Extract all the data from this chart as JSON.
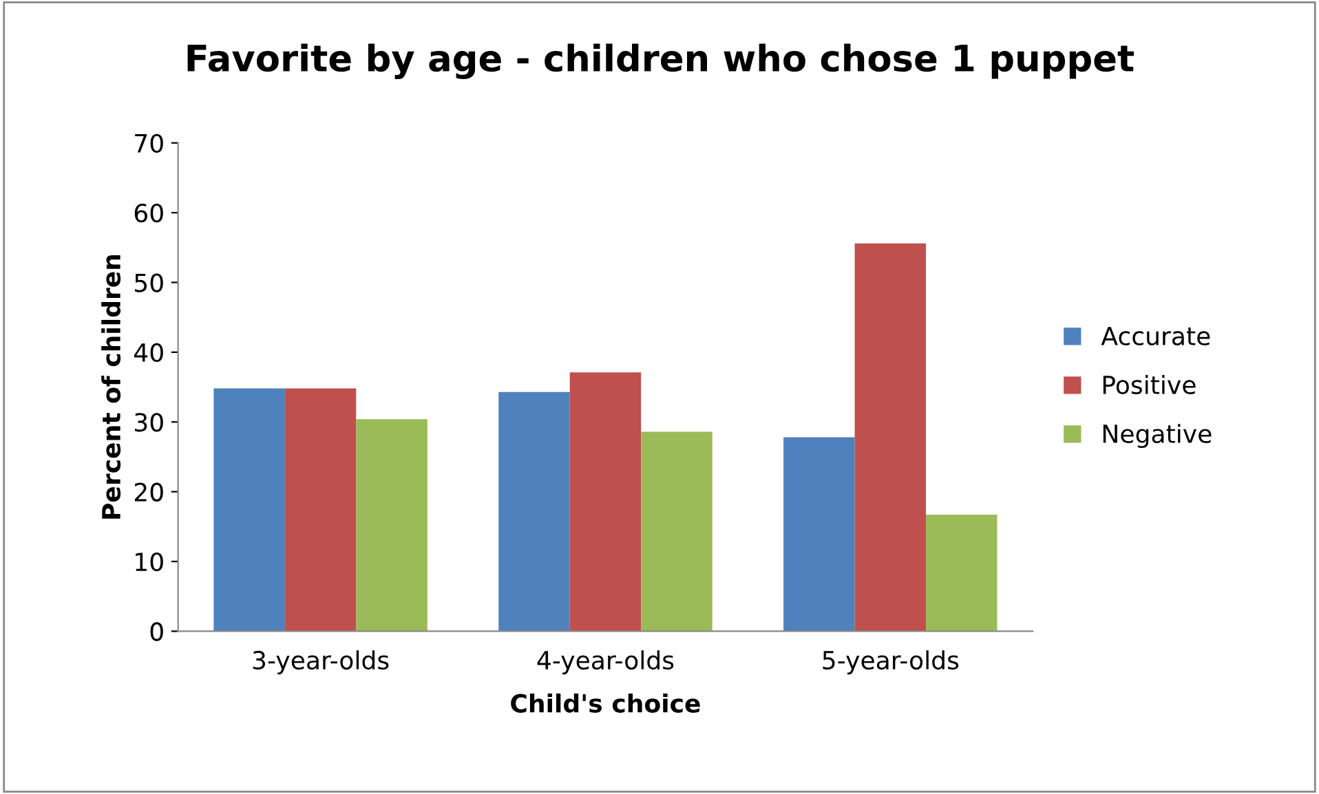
{
  "chart_data": {
    "type": "bar",
    "title": "Favorite by age - children who chose 1 puppet",
    "xlabel": "Child's choice",
    "ylabel": "Percent of children",
    "categories": [
      "3-year-olds",
      "4-year-olds",
      "5-year-olds"
    ],
    "series": [
      {
        "name": "Accurate",
        "color": "#4f81bd",
        "values": [
          34.8,
          34.3,
          27.8
        ]
      },
      {
        "name": "Positive",
        "color": "#c0504d",
        "values": [
          34.8,
          37.1,
          55.6
        ]
      },
      {
        "name": "Negative",
        "color": "#9bbb59",
        "values": [
          30.4,
          28.6,
          16.7
        ]
      }
    ],
    "ylim": [
      0,
      70
    ],
    "yticks": [
      0,
      10,
      20,
      30,
      40,
      50,
      60,
      70
    ],
    "grid": false,
    "legend": "right"
  }
}
